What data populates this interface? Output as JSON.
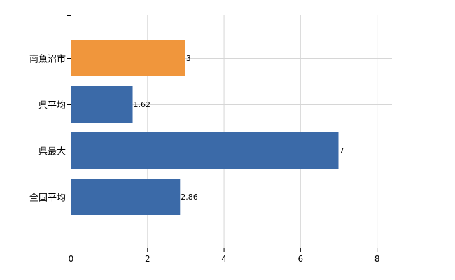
{
  "chart_data": {
    "type": "bar",
    "orientation": "horizontal",
    "categories": [
      "南魚沼市",
      "県平均",
      "県最大",
      "全国平均"
    ],
    "values": [
      3,
      1.62,
      7,
      2.86
    ],
    "data_labels": [
      "3",
      "1.62",
      "7",
      "2.86"
    ],
    "bar_colors": [
      "#f0963c",
      "#3b6aa8",
      "#3b6aa8",
      "#3b6aa8"
    ],
    "xlim": [
      0,
      8.4
    ],
    "x_ticks": [
      0,
      2,
      4,
      6,
      8
    ],
    "x_tick_labels": [
      "0",
      "2",
      "4",
      "6",
      "8"
    ],
    "grid": true,
    "legend": "none",
    "title": "",
    "xlabel": "",
    "ylabel": ""
  }
}
